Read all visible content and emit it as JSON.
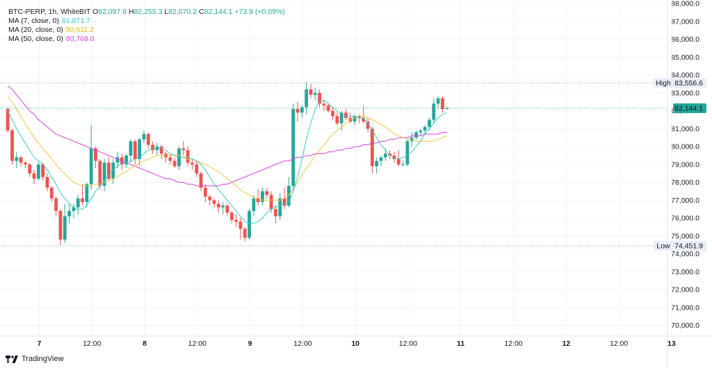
{
  "header": {
    "symbol": "BTC-PERP, 1h, WhiteBIT",
    "o_label": "O",
    "o_value": "82,097.8",
    "h_label": "H",
    "h_value": "82,255.3",
    "l_label": "L",
    "l_value": "82,070.2",
    "c_label": "C",
    "c_value": "82,144.1",
    "change": "+73.9 (+0.09%)"
  },
  "ma_legend": [
    {
      "label": "MA (7, close, 0)",
      "value": "81,871.7",
      "color": "#3cc8c0"
    },
    {
      "label": "MA (20, close, 0)",
      "value": "80,611.2",
      "color": "#f5c542"
    },
    {
      "label": "MA (50, close, 0)",
      "value": "80,768.0",
      "color": "#d63fe0"
    }
  ],
  "markers": {
    "high_label": "High",
    "high_value": "83,556.6",
    "high": 83556.6,
    "low_label": "Low",
    "low_value": "74,451.9",
    "low": 74451.9,
    "last_value": "82,144.1",
    "last": 82144.1
  },
  "brand": "TradingView",
  "colors": {
    "up": "#26a69a",
    "down": "#ef5350",
    "ma7": "#3cc8c0",
    "ma20": "#f5c542",
    "ma50": "#d63fe0",
    "last_bg": "#26a69a",
    "marker_bg": "#e8eef5"
  },
  "chart_data": {
    "type": "candlestick",
    "title": "BTC-PERP, 1h, WhiteBIT",
    "ylim": [
      69400,
      88200
    ],
    "y_ticks": [
      70000,
      71000,
      72000,
      73000,
      74000,
      75000,
      76000,
      77000,
      78000,
      79000,
      80000,
      81000,
      82000,
      83000,
      84000,
      85000,
      86000,
      87000,
      88000
    ],
    "y_tick_labels": [
      "70,000.0",
      "71,000.0",
      "72,000.0",
      "73,000.0",
      "74,000.0",
      "75,000.0",
      "76,000.0",
      "77,000.0",
      "78,000.0",
      "79,000.0",
      "80,000.0",
      "81,000.0",
      "82,000.0",
      "83,000.0",
      "84,000.0",
      "85,000.0",
      "86,000.0",
      "87,000.0",
      "88,000.0"
    ],
    "x_tick_labels": [
      {
        "label": "7",
        "bar": 4,
        "day": true
      },
      {
        "label": "12:00",
        "bar": 16,
        "day": false
      },
      {
        "label": "8",
        "bar": 28,
        "day": true
      },
      {
        "label": "12:00",
        "bar": 40,
        "day": false
      },
      {
        "label": "9",
        "bar": 52,
        "day": true
      },
      {
        "label": "12:00",
        "bar": 64,
        "day": false
      },
      {
        "label": "10",
        "bar": 76,
        "day": true
      },
      {
        "label": "12:00",
        "bar": 88,
        "day": false
      },
      {
        "label": "11",
        "bar": 100,
        "day": true
      },
      {
        "label": "12:00",
        "bar": 112,
        "day": false
      },
      {
        "label": "12",
        "bar": 124,
        "day": true
      },
      {
        "label": "12:00",
        "bar": 136,
        "day": false
      },
      {
        "label": "13",
        "bar": 148,
        "day": true
      }
    ],
    "bar_count_visible": 152,
    "candles": [
      [
        82100,
        82200,
        80800,
        80900
      ],
      [
        80900,
        81000,
        79000,
        79200
      ],
      [
        79200,
        79700,
        78800,
        79400
      ],
      [
        79400,
        79500,
        78900,
        79100
      ],
      [
        79100,
        79200,
        78800,
        79000
      ],
      [
        79000,
        79100,
        78300,
        78500
      ],
      [
        78500,
        78700,
        77900,
        78200
      ],
      [
        78200,
        79100,
        78100,
        79000
      ],
      [
        79000,
        79100,
        78100,
        78300
      ],
      [
        78300,
        78500,
        77500,
        77700
      ],
      [
        77700,
        77800,
        76900,
        77100
      ],
      [
        77100,
        77200,
        76100,
        76400
      ],
      [
        76400,
        76500,
        74500,
        74800
      ],
      [
        74800,
        76800,
        74600,
        76100
      ],
      [
        76100,
        76800,
        75700,
        76400
      ],
      [
        76400,
        76800,
        76000,
        76600
      ],
      [
        76600,
        77300,
        76200,
        77100
      ],
      [
        77100,
        77900,
        76700,
        76900
      ],
      [
        76900,
        78000,
        76600,
        77900
      ],
      [
        77900,
        81200,
        77600,
        79900
      ],
      [
        79900,
        80000,
        78800,
        79200
      ],
      [
        79200,
        79300,
        77600,
        77800
      ],
      [
        77800,
        79300,
        77500,
        79100
      ],
      [
        79100,
        79400,
        78100,
        78200
      ],
      [
        78200,
        79300,
        77900,
        79100
      ],
      [
        79100,
        79700,
        78800,
        79400
      ],
      [
        79400,
        79600,
        78700,
        79000
      ],
      [
        79000,
        79600,
        78800,
        79500
      ],
      [
        79500,
        80400,
        79100,
        80300
      ],
      [
        80300,
        80400,
        79000,
        79300
      ],
      [
        79300,
        80500,
        78900,
        80400
      ],
      [
        80400,
        80900,
        80200,
        80700
      ],
      [
        80700,
        80800,
        79900,
        80100
      ],
      [
        80100,
        80300,
        79600,
        79800
      ],
      [
        79800,
        80200,
        79500,
        80000
      ],
      [
        80000,
        80100,
        79300,
        79600
      ],
      [
        79600,
        79700,
        79100,
        79400
      ],
      [
        79400,
        79600,
        79000,
        79200
      ],
      [
        79200,
        79400,
        78800,
        78900
      ],
      [
        78900,
        80000,
        78700,
        79900
      ],
      [
        79900,
        80300,
        79500,
        79800
      ],
      [
        79800,
        80000,
        78900,
        79100
      ],
      [
        79100,
        79300,
        78700,
        79000
      ],
      [
        79000,
        79200,
        78300,
        78500
      ],
      [
        78500,
        78600,
        77500,
        77700
      ],
      [
        77700,
        77900,
        76900,
        77200
      ],
      [
        77200,
        77300,
        76700,
        77000
      ],
      [
        77000,
        77100,
        76600,
        76800
      ],
      [
        76800,
        77000,
        76300,
        76600
      ],
      [
        76600,
        76900,
        76200,
        76700
      ],
      [
        76700,
        76800,
        76100,
        76300
      ],
      [
        76300,
        76400,
        75700,
        75900
      ],
      [
        75900,
        76200,
        75500,
        75800
      ],
      [
        75800,
        76000,
        74800,
        75400
      ],
      [
        75400,
        75500,
        74700,
        74900
      ],
      [
        74900,
        76500,
        74800,
        76400
      ],
      [
        76400,
        77300,
        76100,
        77100
      ],
      [
        77100,
        77600,
        76700,
        76900
      ],
      [
        76900,
        77700,
        76700,
        77500
      ],
      [
        77500,
        77700,
        77100,
        77300
      ],
      [
        77300,
        77500,
        76300,
        76500
      ],
      [
        76500,
        76700,
        75700,
        76100
      ],
      [
        76100,
        77400,
        75900,
        77100
      ],
      [
        77100,
        77700,
        76500,
        76700
      ],
      [
        76700,
        78300,
        76600,
        77800
      ],
      [
        77800,
        82400,
        77500,
        82100
      ],
      [
        82100,
        82500,
        81400,
        81900
      ],
      [
        81900,
        82300,
        81600,
        82200
      ],
      [
        82200,
        83600,
        81800,
        83200
      ],
      [
        83200,
        83500,
        82700,
        82900
      ],
      [
        82900,
        83300,
        82600,
        83000
      ],
      [
        83000,
        83200,
        82200,
        82400
      ],
      [
        82400,
        82600,
        82000,
        82300
      ],
      [
        82300,
        82400,
        81900,
        82000
      ],
      [
        82000,
        82200,
        81500,
        81700
      ],
      [
        81700,
        81900,
        81200,
        81300
      ],
      [
        81300,
        82000,
        80900,
        81900
      ],
      [
        81900,
        82100,
        81500,
        81600
      ],
      [
        81600,
        81900,
        81300,
        81400
      ],
      [
        81400,
        81800,
        81200,
        81700
      ],
      [
        81700,
        81800,
        81300,
        81600
      ],
      [
        81600,
        82300,
        81300,
        81400
      ],
      [
        81400,
        81600,
        80800,
        81000
      ],
      [
        81000,
        81100,
        78500,
        78900
      ],
      [
        78900,
        79400,
        78500,
        79200
      ],
      [
        79200,
        79500,
        78900,
        79400
      ],
      [
        79400,
        79900,
        79200,
        79600
      ],
      [
        79600,
        79800,
        79300,
        79500
      ],
      [
        79500,
        79700,
        79100,
        79300
      ],
      [
        79300,
        79800,
        78900,
        79000
      ],
      [
        79000,
        79200,
        78900,
        79000
      ],
      [
        79000,
        80400,
        78900,
        80300
      ],
      [
        80300,
        80800,
        80000,
        80500
      ],
      [
        80500,
        80900,
        80400,
        80800
      ],
      [
        80800,
        81000,
        80600,
        80900
      ],
      [
        80900,
        81200,
        80700,
        81100
      ],
      [
        81100,
        81600,
        80900,
        81500
      ],
      [
        81500,
        82700,
        81300,
        82400
      ],
      [
        82400,
        82800,
        82100,
        82700
      ],
      [
        82700,
        82800,
        81900,
        82100
      ],
      [
        82100,
        82255,
        82070,
        82144
      ]
    ],
    "ma7": [
      82000,
      81500,
      81000,
      80600,
      80200,
      79800,
      79400,
      79200,
      79000,
      78700,
      78300,
      77900,
      77400,
      77100,
      76800,
      76600,
      76500,
      76500,
      76700,
      77100,
      77500,
      77800,
      78100,
      78400,
      78700,
      78900,
      79100,
      79100,
      79200,
      79300,
      79400,
      79600,
      79800,
      79900,
      79900,
      79900,
      79800,
      79600,
      79500,
      79400,
      79400,
      79400,
      79300,
      79200,
      79000,
      78700,
      78300,
      77900,
      77600,
      77300,
      77000,
      76700,
      76400,
      76100,
      75800,
      75700,
      75700,
      75800,
      76000,
      76300,
      76500,
      76600,
      76700,
      76800,
      76900,
      77500,
      78300,
      79300,
      80400,
      81300,
      82100,
      82500,
      82600,
      82400,
      82200,
      82000,
      81800,
      81700,
      81700,
      81700,
      81600,
      81600,
      81300,
      80900,
      80500,
      80100,
      79800,
      79500,
      79400,
      79300,
      79400,
      79500,
      79700,
      80000,
      80300,
      80700,
      81000,
      81300,
      81600,
      81800,
      81900
    ],
    "ma20": [
      82800,
      82500,
      82100,
      81700,
      81300,
      80900,
      80500,
      80200,
      79900,
      79600,
      79300,
      79000,
      78700,
      78500,
      78200,
      78000,
      77900,
      77800,
      77800,
      77800,
      77900,
      77900,
      78000,
      78100,
      78200,
      78300,
      78500,
      78600,
      78800,
      78900,
      79100,
      79200,
      79300,
      79400,
      79500,
      79500,
      79500,
      79500,
      79500,
      79500,
      79400,
      79300,
      79300,
      79200,
      79100,
      79000,
      78900,
      78700,
      78600,
      78400,
      78200,
      78000,
      77800,
      77600,
      77400,
      77300,
      77200,
      77100,
      77000,
      77000,
      77000,
      77000,
      77000,
      77100,
      77300,
      77600,
      78000,
      78400,
      78800,
      79100,
      79500,
      79800,
      80100,
      80400,
      80700,
      80900,
      81100,
      81300,
      81500,
      81600,
      81700,
      81700,
      81600,
      81500,
      81400,
      81200,
      81100,
      80900,
      80700,
      80600,
      80500,
      80400,
      80400,
      80300,
      80300,
      80300,
      80300,
      80300,
      80400,
      80500,
      80600
    ],
    "ma50": [
      83400,
      83200,
      82900,
      82600,
      82300,
      82000,
      81800,
      81500,
      81300,
      81100,
      80900,
      80700,
      80600,
      80500,
      80400,
      80300,
      80200,
      80100,
      80000,
      79900,
      79800,
      79700,
      79600,
      79500,
      79400,
      79300,
      79200,
      79100,
      79000,
      78900,
      78800,
      78700,
      78600,
      78500,
      78400,
      78300,
      78200,
      78200,
      78100,
      78000,
      78000,
      77900,
      77900,
      77800,
      77800,
      77800,
      77800,
      77800,
      77800,
      77900,
      77900,
      78000,
      78100,
      78200,
      78300,
      78400,
      78500,
      78600,
      78700,
      78800,
      78900,
      79000,
      79100,
      79200,
      79200,
      79300,
      79400,
      79400,
      79500,
      79500,
      79600,
      79600,
      79600,
      79700,
      79700,
      79800,
      79800,
      79900,
      79900,
      80000,
      80000,
      80100,
      80100,
      80200,
      80200,
      80300,
      80300,
      80400,
      80400,
      80500,
      80500,
      80500,
      80600,
      80600,
      80600,
      80700,
      80700,
      80700,
      80700,
      80800,
      80800
    ]
  }
}
